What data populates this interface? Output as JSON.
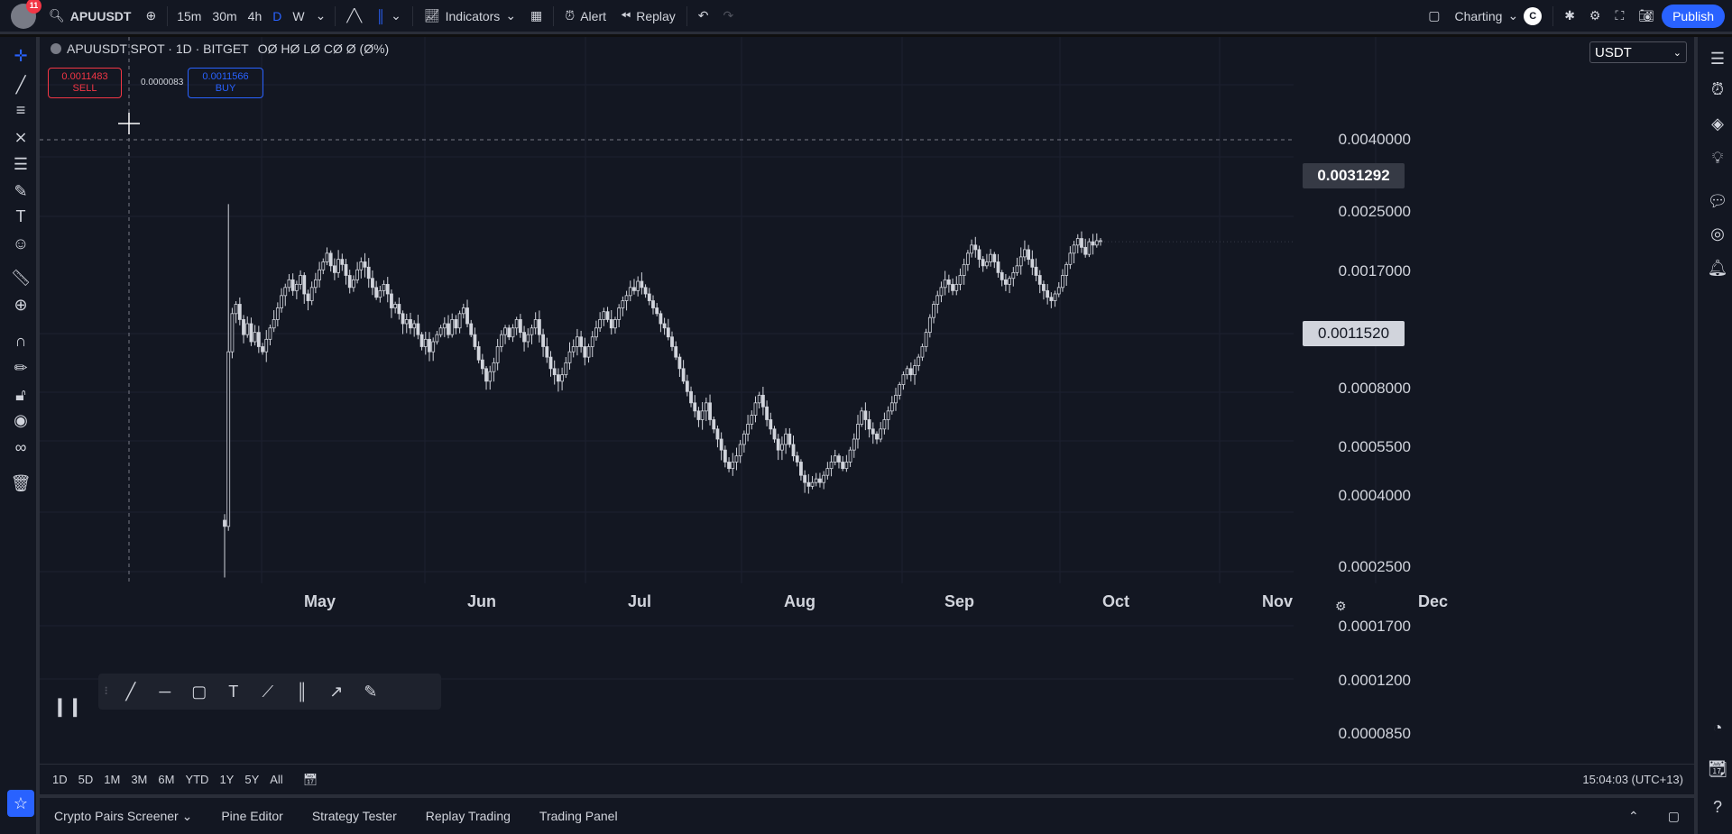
{
  "topbar": {
    "notifications": "11",
    "symbol": "APUUSDT",
    "intervals": [
      "15m",
      "30m",
      "4h",
      "D",
      "W"
    ],
    "indicators_label": "Indicators",
    "alert_label": "Alert",
    "replay_label": "Replay",
    "layout_label": "Charting",
    "user_initial": "C",
    "publish_label": "Publish"
  },
  "legend": {
    "title": "APUUSDT SPOT · 1D · BITGET",
    "ohlc": "OØ HØ LØ CØ Ø (Ø%)"
  },
  "trade": {
    "sell_price": "0.0011483",
    "sell_label": "SELL",
    "spread": "0.0000083",
    "buy_price": "0.0011566",
    "buy_label": "BUY"
  },
  "currency": "USDT",
  "price_axis": {
    "ticks": [
      "0.0040000",
      "0.0025000",
      "0.0017000",
      "0.0008000",
      "0.0005500",
      "0.0004000",
      "0.0002500",
      "0.0001700",
      "0.0001200",
      "0.0000850"
    ],
    "crosshair_price": "0.0031292",
    "last_price": "0.0011520"
  },
  "time_axis": {
    "months": [
      "May",
      "Jun",
      "Jul",
      "Aug",
      "Sep",
      "Oct",
      "Nov",
      "Dec"
    ]
  },
  "timebar": {
    "ranges": [
      "1D",
      "5D",
      "1M",
      "3M",
      "6M",
      "YTD",
      "1Y",
      "5Y",
      "All"
    ],
    "clock": "15:04:03 (UTC+13)"
  },
  "bottom_tabs": [
    "Crypto Pairs Screener",
    "Pine Editor",
    "Strategy Tester",
    "Replay Trading",
    "Trading Panel"
  ],
  "colors": {
    "background": "#131722",
    "accent": "#2962ff",
    "sell": "#f23645",
    "candle": "#d1d4dc"
  },
  "chart_data": {
    "type": "candlestick",
    "scale": "log",
    "ylim": [
      8e-05,
      0.0045
    ],
    "closes": [
      0.00012,
      0.00048,
      0.00065,
      0.0007,
      0.00062,
      0.00055,
      0.0006,
      0.00052,
      0.00056,
      0.0005,
      0.00048,
      0.00053,
      0.00058,
      0.00062,
      0.00068,
      0.00075,
      0.0008,
      0.00085,
      0.00078,
      0.00082,
      0.00088,
      0.00076,
      0.00072,
      0.0008,
      0.00085,
      0.00092,
      0.00098,
      0.00105,
      0.00095,
      0.0009,
      0.001,
      0.00096,
      0.00088,
      0.0008,
      0.00085,
      0.00092,
      0.00098,
      0.00094,
      0.00086,
      0.0008,
      0.00074,
      0.00078,
      0.00082,
      0.00076,
      0.00068,
      0.0007,
      0.00065,
      0.0006,
      0.00062,
      0.00058,
      0.0006,
      0.00055,
      0.0005,
      0.00053,
      0.00048,
      0.00052,
      0.00055,
      0.00058,
      0.0006,
      0.00055,
      0.00062,
      0.00058,
      0.00065,
      0.00068,
      0.0006,
      0.00055,
      0.0005,
      0.00045,
      0.00042,
      0.00038,
      0.00041,
      0.00044,
      0.0005,
      0.00055,
      0.00058,
      0.00054,
      0.00058,
      0.00062,
      0.00056,
      0.00052,
      0.00055,
      0.00058,
      0.00062,
      0.00055,
      0.0005,
      0.00046,
      0.00042,
      0.0004,
      0.00038,
      0.0004,
      0.00044,
      0.00048,
      0.0005,
      0.00054,
      0.0005,
      0.00046,
      0.0005,
      0.00054,
      0.00058,
      0.00062,
      0.00066,
      0.00062,
      0.00058,
      0.00062,
      0.00068,
      0.00072,
      0.00075,
      0.0008,
      0.00078,
      0.00084,
      0.0008,
      0.00076,
      0.00072,
      0.00068,
      0.00065,
      0.0006,
      0.00058,
      0.00054,
      0.0005,
      0.00046,
      0.00042,
      0.00038,
      0.00035,
      0.00032,
      0.0003,
      0.00028,
      0.0003,
      0.00032,
      0.00028,
      0.00026,
      0.00024,
      0.00022,
      0.0002,
      0.00019,
      0.0002,
      0.00021,
      0.00023,
      0.00025,
      0.00027,
      0.00029,
      0.00032,
      0.00034,
      0.00031,
      0.00028,
      0.00026,
      0.00024,
      0.00022,
      0.00023,
      0.00025,
      0.00023,
      0.00021,
      0.0002,
      0.00018,
      0.00017,
      0.000165,
      0.00017,
      0.000175,
      0.00017,
      0.00018,
      0.00019,
      0.0002,
      0.00021,
      0.0002,
      0.00019,
      0.0002,
      0.00022,
      0.00024,
      0.00027,
      0.0003,
      0.00028,
      0.00026,
      0.00025,
      0.00024,
      0.00026,
      0.00028,
      0.0003,
      0.00032,
      0.00034,
      0.00037,
      0.0004,
      0.00042,
      0.0004,
      0.00043,
      0.00046,
      0.0005,
      0.00056,
      0.00063,
      0.0007,
      0.00075,
      0.0008,
      0.00085,
      0.00082,
      0.00078,
      0.00082,
      0.00088,
      0.00096,
      0.00105,
      0.00112,
      0.00108,
      0.001,
      0.00095,
      0.00098,
      0.00104,
      0.00098,
      0.0009,
      0.00085,
      0.00082,
      0.00086,
      0.0009,
      0.00095,
      0.00102,
      0.00108,
      0.001,
      0.00094,
      0.00088,
      0.00082,
      0.00078,
      0.00074,
      0.00072,
      0.00076,
      0.0008,
      0.00088,
      0.00096,
      0.00105,
      0.00112,
      0.00118,
      0.0011,
      0.00104,
      0.00115,
      0.00112,
      0.00116,
      0.00115
    ]
  }
}
